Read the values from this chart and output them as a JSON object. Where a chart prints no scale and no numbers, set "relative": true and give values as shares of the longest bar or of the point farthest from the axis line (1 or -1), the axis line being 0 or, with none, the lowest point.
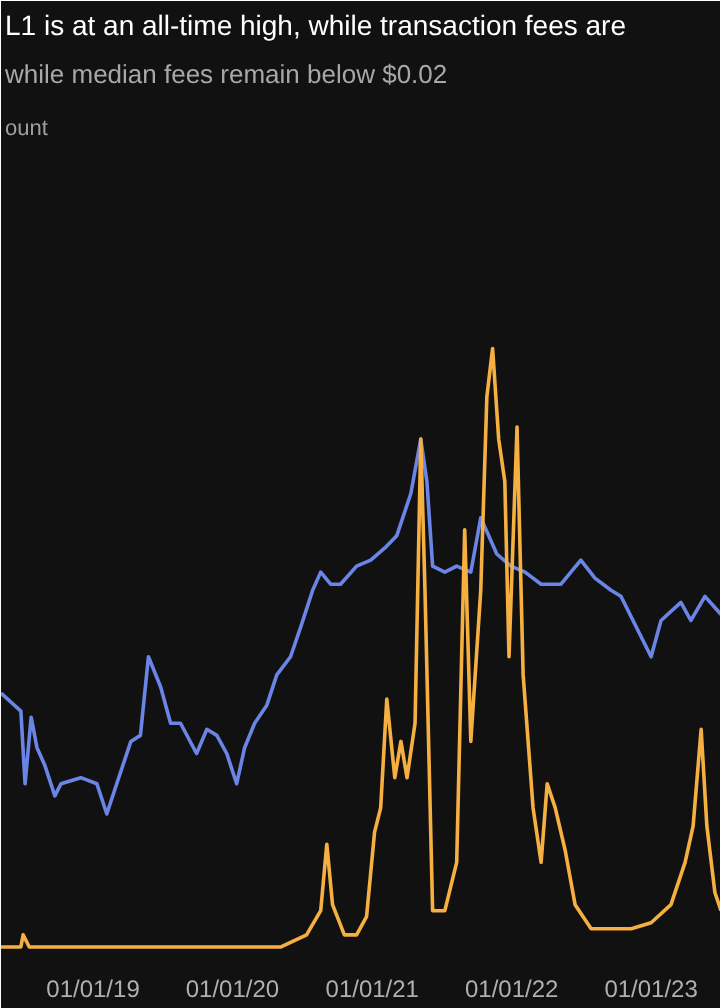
{
  "chart_data": {
    "type": "line",
    "title": "L1 is at an all-time high, while transaction fees are",
    "subtitle": "while median fees remain below $0.02",
    "annotations": [
      "ount"
    ],
    "relative": true,
    "xlim": [
      "2018-05-05",
      "2023-07-03"
    ],
    "xticks": [
      {
        "value": "2019-01-01",
        "label": "01/01/19"
      },
      {
        "value": "2020-01-01",
        "label": "01/01/20"
      },
      {
        "value": "2021-01-01",
        "label": "01/01/21"
      },
      {
        "value": "2022-01-01",
        "label": "01/01/22"
      },
      {
        "value": "2023-01-01",
        "label": "01/01/23"
      }
    ],
    "series": [
      {
        "color": "#6a85e6",
        "x": [
          "2018-05-05",
          "2018-06-26",
          "2018-07-07",
          "2018-07-23",
          "2018-08-07",
          "2018-08-28",
          "2018-09-23",
          "2018-10-09",
          "2018-11-30",
          "2019-01-11",
          "2019-02-06",
          "2019-03-04",
          "2019-04-10",
          "2019-05-05",
          "2019-05-26",
          "2019-06-27",
          "2019-07-23",
          "2019-08-18",
          "2019-09-29",
          "2019-10-26",
          "2019-11-21",
          "2019-12-17",
          "2020-01-12",
          "2020-02-02",
          "2020-02-28",
          "2020-03-31",
          "2020-04-26",
          "2020-06-01",
          "2020-06-28",
          "2020-07-29",
          "2020-08-19",
          "2020-09-14",
          "2020-10-10",
          "2020-11-21",
          "2020-12-28",
          "2021-02-03",
          "2021-03-06",
          "2021-04-12",
          "2021-05-08",
          "2021-05-24",
          "2021-06-08",
          "2021-07-10",
          "2021-08-10",
          "2021-09-16",
          "2021-10-12",
          "2021-11-23",
          "2021-12-30",
          "2022-02-05",
          "2022-03-19",
          "2022-05-10",
          "2022-07-01",
          "2022-08-07",
          "2022-09-18",
          "2022-10-14",
          "2023-01-01",
          "2023-01-27",
          "2023-03-20",
          "2023-04-15",
          "2023-05-22",
          "2023-07-03"
        ],
        "values": [
          0.43,
          0.4,
          0.28,
          0.39,
          0.34,
          0.31,
          0.26,
          0.28,
          0.29,
          0.28,
          0.23,
          0.28,
          0.35,
          0.36,
          0.49,
          0.44,
          0.38,
          0.38,
          0.33,
          0.37,
          0.36,
          0.33,
          0.28,
          0.34,
          0.38,
          0.41,
          0.46,
          0.49,
          0.54,
          0.6,
          0.63,
          0.61,
          0.61,
          0.64,
          0.65,
          0.67,
          0.69,
          0.76,
          0.85,
          0.78,
          0.64,
          0.63,
          0.64,
          0.63,
          0.72,
          0.66,
          0.64,
          0.63,
          0.61,
          0.61,
          0.65,
          0.62,
          0.6,
          0.59,
          0.49,
          0.55,
          0.58,
          0.55,
          0.59,
          0.56
        ]
      },
      {
        "color": "#f5b041",
        "x": [
          "2018-05-05",
          "2018-06-26",
          "2018-07-02",
          "2018-07-18",
          "2019-03-15",
          "2019-10-10",
          "2020-05-07",
          "2020-07-13",
          "2020-08-19",
          "2020-09-04",
          "2020-09-19",
          "2020-10-20",
          "2020-11-21",
          "2020-12-17",
          "2021-01-07",
          "2021-01-23",
          "2021-02-08",
          "2021-03-01",
          "2021-03-17",
          "2021-04-02",
          "2021-04-23",
          "2021-05-08",
          "2021-05-19",
          "2021-06-08",
          "2021-07-10",
          "2021-08-10",
          "2021-08-31",
          "2021-09-16",
          "2021-10-12",
          "2021-10-28",
          "2021-11-12",
          "2021-11-28",
          "2021-12-14",
          "2021-12-25",
          "2022-01-15",
          "2022-01-31",
          "2022-02-26",
          "2022-03-19",
          "2022-04-04",
          "2022-04-25",
          "2022-05-21",
          "2022-06-16",
          "2022-07-28",
          "2022-09-18",
          "2022-11-10",
          "2023-01-01",
          "2023-02-22",
          "2023-03-31",
          "2023-04-21",
          "2023-05-12",
          "2023-05-27",
          "2023-06-17",
          "2023-07-03"
        ],
        "values": [
          0.01,
          0.01,
          0.03,
          0.01,
          0.01,
          0.01,
          0.01,
          0.03,
          0.07,
          0.18,
          0.08,
          0.03,
          0.03,
          0.06,
          0.2,
          0.24,
          0.42,
          0.29,
          0.35,
          0.29,
          0.38,
          0.85,
          0.6,
          0.07,
          0.07,
          0.15,
          0.7,
          0.35,
          0.6,
          0.92,
          1.0,
          0.85,
          0.78,
          0.49,
          0.87,
          0.46,
          0.24,
          0.15,
          0.28,
          0.24,
          0.17,
          0.08,
          0.04,
          0.04,
          0.04,
          0.05,
          0.08,
          0.15,
          0.21,
          0.37,
          0.21,
          0.1,
          0.07
        ]
      }
    ]
  }
}
